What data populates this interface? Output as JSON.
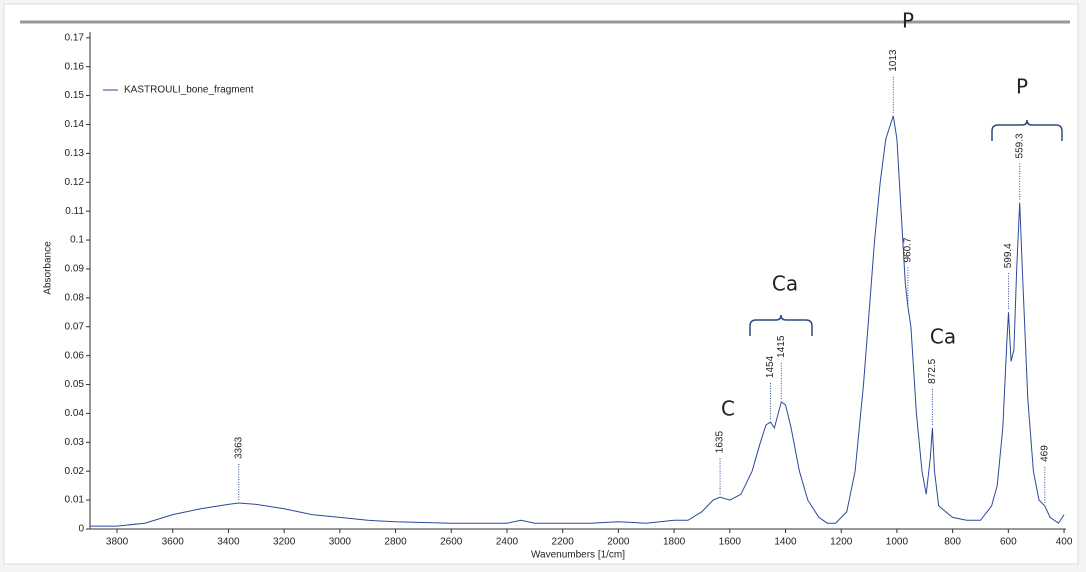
{
  "chart_data": {
    "type": "line",
    "x_label": "Wavenumbers [1/cm]",
    "y_label": "Absorbance",
    "xlim": [
      3897,
      393
    ],
    "ylim": [
      0,
      0.172
    ],
    "xticks": [
      3800,
      3600,
      3400,
      3200,
      3000,
      2800,
      2600,
      2400,
      2200,
      2000,
      1800,
      1600,
      1400,
      1200,
      1000,
      800,
      600,
      400
    ],
    "yticks": [
      0,
      0.01,
      0.02,
      0.03,
      0.04,
      0.05,
      0.06,
      0.07,
      0.08,
      0.09,
      0.1,
      0.11,
      0.12,
      0.13,
      0.14,
      0.15,
      0.16,
      0.17
    ],
    "x": [
      3895,
      3800,
      3700,
      3600,
      3500,
      3400,
      3363,
      3300,
      3200,
      3100,
      3000,
      2900,
      2800,
      2600,
      2400,
      2350,
      2300,
      2200,
      2100,
      2000,
      1900,
      1800,
      1750,
      1700,
      1660,
      1635,
      1600,
      1560,
      1520,
      1490,
      1470,
      1454,
      1440,
      1415,
      1400,
      1380,
      1350,
      1320,
      1280,
      1250,
      1220,
      1180,
      1150,
      1120,
      1100,
      1080,
      1060,
      1040,
      1013,
      1000,
      985,
      970,
      960.7,
      950,
      930,
      910,
      895,
      880,
      872.5,
      865,
      850,
      800,
      750,
      700,
      660,
      640,
      620,
      605,
      599.4,
      590,
      580,
      570,
      559.3,
      550,
      530,
      510,
      490,
      469,
      450,
      420,
      400
    ],
    "series": [
      {
        "name": "KASTROULI_bone_fragment",
        "color": "#2c4a9a",
        "values": [
          0.001,
          0.001,
          0.002,
          0.005,
          0.007,
          0.0085,
          0.009,
          0.0085,
          0.007,
          0.005,
          0.004,
          0.003,
          0.0025,
          0.002,
          0.002,
          0.003,
          0.002,
          0.002,
          0.002,
          0.0025,
          0.002,
          0.003,
          0.003,
          0.006,
          0.01,
          0.011,
          0.01,
          0.012,
          0.02,
          0.03,
          0.036,
          0.037,
          0.035,
          0.044,
          0.043,
          0.035,
          0.02,
          0.01,
          0.004,
          0.002,
          0.002,
          0.006,
          0.02,
          0.05,
          0.075,
          0.1,
          0.12,
          0.135,
          0.143,
          0.135,
          0.11,
          0.085,
          0.077,
          0.07,
          0.04,
          0.02,
          0.012,
          0.025,
          0.035,
          0.02,
          0.008,
          0.004,
          0.003,
          0.003,
          0.008,
          0.015,
          0.035,
          0.065,
          0.075,
          0.058,
          0.062,
          0.09,
          0.113,
          0.09,
          0.045,
          0.02,
          0.01,
          0.008,
          0.004,
          0.002,
          0.005
        ]
      }
    ],
    "peaks": [
      3363,
      1635,
      1454,
      1415,
      1013,
      960.7,
      872.5,
      599.4,
      559.3,
      469
    ],
    "annotations": [
      "C",
      "Ca",
      "Ca",
      "P",
      "P"
    ]
  }
}
